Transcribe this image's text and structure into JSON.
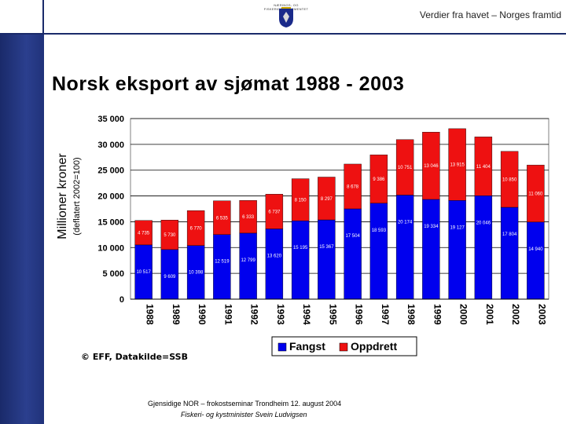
{
  "header": {
    "subtitle": "Verdier fra havet – Norges framtid",
    "logo_text": "NÆRINGS- OG FISKERIDEPARTEMENTET"
  },
  "slide_title": "Norsk eksport av sjømat 1988 - 2003",
  "copyright": "© EFF, Datakilde=SSB",
  "footer": {
    "line1": "Gjensidige NOR – frokostseminar   Trondheim 12. august 2004",
    "line2": "Fiskeri- og kystminister Svein Ludvigsen"
  },
  "colors": {
    "fangst": "#0000ee",
    "oppdrett": "#ee1111",
    "sidebar": "#1a2a6a"
  },
  "chart_data": {
    "type": "bar",
    "stacked": true,
    "ylabel": "Millioner kroner",
    "ylabel2": "(deflatert 2002=100)",
    "ylim": [
      0,
      35000
    ],
    "yticks": [
      "0",
      "5 000",
      "10 000",
      "15 000",
      "20 000",
      "25 000",
      "30 000",
      "35 000"
    ],
    "grid": true,
    "legend_position": "bottom",
    "categories": [
      "1988",
      "1989",
      "1990",
      "1991",
      "1992",
      "1993",
      "1994",
      "1995",
      "1996",
      "1997",
      "1998",
      "1999",
      "2000",
      "2001",
      "2002",
      "2003"
    ],
    "series": [
      {
        "name": "Fangst",
        "values": [
          10517,
          9609,
          10398,
          12519,
          12799,
          13620,
          15195,
          15367,
          17504,
          18593,
          20174,
          19334,
          19127,
          20046,
          17804,
          14940
        ],
        "labels": [
          "10 517",
          "9 609",
          "10 398",
          "12 519",
          "12 799",
          "13 620",
          "15 195",
          "15 367",
          "17 504",
          "18 593",
          "20 174",
          "19 334",
          "19 127",
          "20 046",
          "17 804",
          "14 940"
        ]
      },
      {
        "name": "Oppdrett",
        "values": [
          4735,
          5730,
          6770,
          6535,
          6333,
          6737,
          8150,
          8297,
          8678,
          9386,
          10751,
          13046,
          13915,
          11404,
          10850,
          11060
        ],
        "labels": [
          "4 735",
          "5 730",
          "6 770",
          "6 535",
          "6 333",
          "6 737",
          "8 150",
          "8 297",
          "8 678",
          "9 386",
          "10 751",
          "13 046",
          "13 915",
          "11 404",
          "10 850",
          "11 060"
        ]
      }
    ]
  }
}
